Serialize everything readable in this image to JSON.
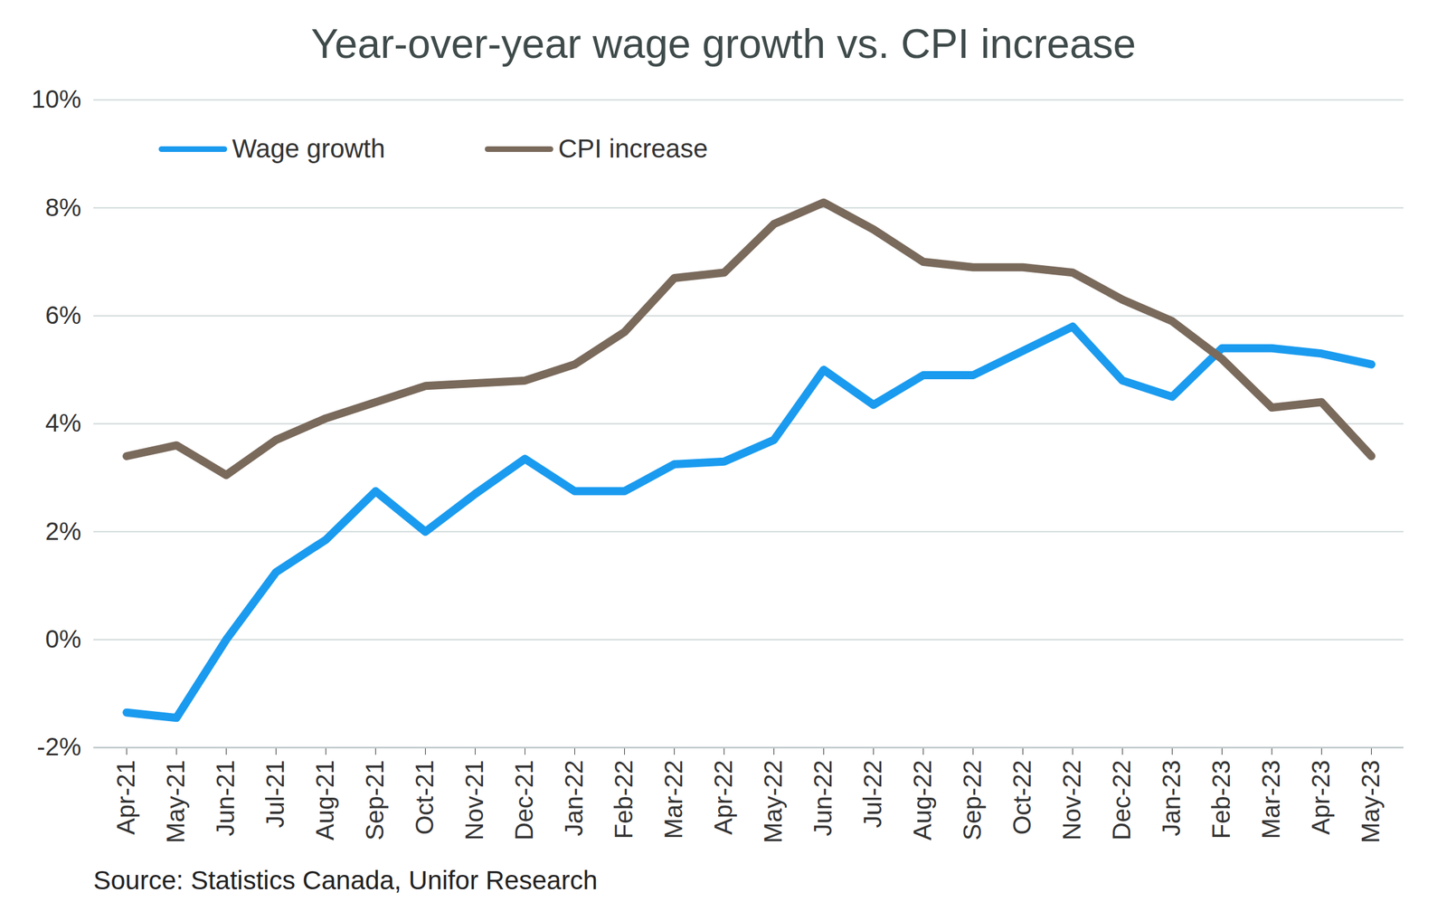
{
  "chart_data": {
    "type": "line",
    "title": "Year-over-year wage growth vs. CPI increase",
    "source": "Source: Statistics Canada, Unifor Research",
    "categories": [
      "Apr-21",
      "May-21",
      "Jun-21",
      "Jul-21",
      "Aug-21",
      "Sep-21",
      "Oct-21",
      "Nov-21",
      "Dec-21",
      "Jan-22",
      "Feb-22",
      "Mar-22",
      "Apr-22",
      "May-22",
      "Jun-22",
      "Jul-22",
      "Aug-22",
      "Sep-22",
      "Oct-22",
      "Nov-22",
      "Dec-22",
      "Jan-23",
      "Feb-23",
      "Mar-23",
      "Apr-23",
      "May-23"
    ],
    "series": [
      {
        "name": "Wage growth",
        "color": "#1a9bef",
        "values": [
          -1.35,
          -1.45,
          0.0,
          1.25,
          1.85,
          2.75,
          2.0,
          2.7,
          3.35,
          2.75,
          2.75,
          3.25,
          3.3,
          3.7,
          5.0,
          4.35,
          4.9,
          4.9,
          5.35,
          5.8,
          4.8,
          4.5,
          5.4,
          5.4,
          5.3,
          5.1
        ]
      },
      {
        "name": "CPI increase",
        "color": "#7a6a5c",
        "values": [
          3.4,
          3.6,
          3.05,
          3.7,
          4.1,
          4.4,
          4.7,
          4.75,
          4.8,
          5.1,
          5.7,
          6.7,
          6.8,
          7.7,
          8.1,
          7.6,
          7.0,
          6.9,
          6.9,
          6.8,
          6.3,
          5.9,
          5.2,
          4.3,
          4.4,
          3.4
        ]
      }
    ],
    "ylim": [
      -2,
      10
    ],
    "yticks": [
      {
        "value": -2,
        "label": "-2%"
      },
      {
        "value": 0,
        "label": "0%"
      },
      {
        "value": 2,
        "label": "2%"
      },
      {
        "value": 4,
        "label": "4%"
      },
      {
        "value": 6,
        "label": "6%"
      },
      {
        "value": 8,
        "label": "8%"
      },
      {
        "value": 10,
        "label": "10%"
      }
    ],
    "grid": true,
    "legend": "upper left"
  }
}
